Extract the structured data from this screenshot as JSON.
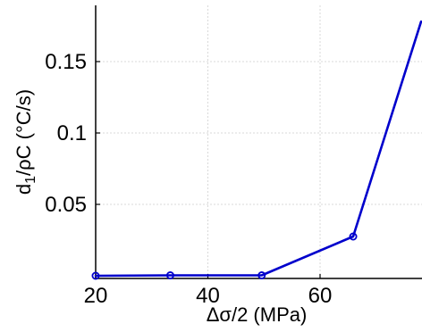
{
  "chart_data": {
    "type": "line",
    "title": "",
    "xlabel": "Δσ/2 (MPa)",
    "ylabel": "d₁/ρC (°C/s)",
    "xlim": [
      20,
      78
    ],
    "ylim": [
      -0.002,
      0.185
    ],
    "xticks": [
      20,
      40,
      60
    ],
    "xtick_labels": [
      "20",
      "40",
      "60"
    ],
    "yticks": [
      0.05,
      0.1,
      0.15
    ],
    "ytick_labels": [
      "0.05",
      "0.1",
      "0.15"
    ],
    "grid": true,
    "series": [
      {
        "color": "#0000cc",
        "marker": "circle-open",
        "markers": [
          {
            "x": 20,
            "y": 0.0
          },
          {
            "x": 33.3,
            "y": 0.0003
          },
          {
            "x": 49.6,
            "y": 0.0003
          },
          {
            "x": 65.9,
            "y": 0.0275
          }
        ],
        "line": [
          {
            "x": 20,
            "y": 0.0
          },
          {
            "x": 33.3,
            "y": 0.0003
          },
          {
            "x": 49.6,
            "y": 0.0003
          },
          {
            "x": 65.9,
            "y": 0.0275
          },
          {
            "x": 78,
            "y": 0.178
          }
        ]
      }
    ]
  }
}
